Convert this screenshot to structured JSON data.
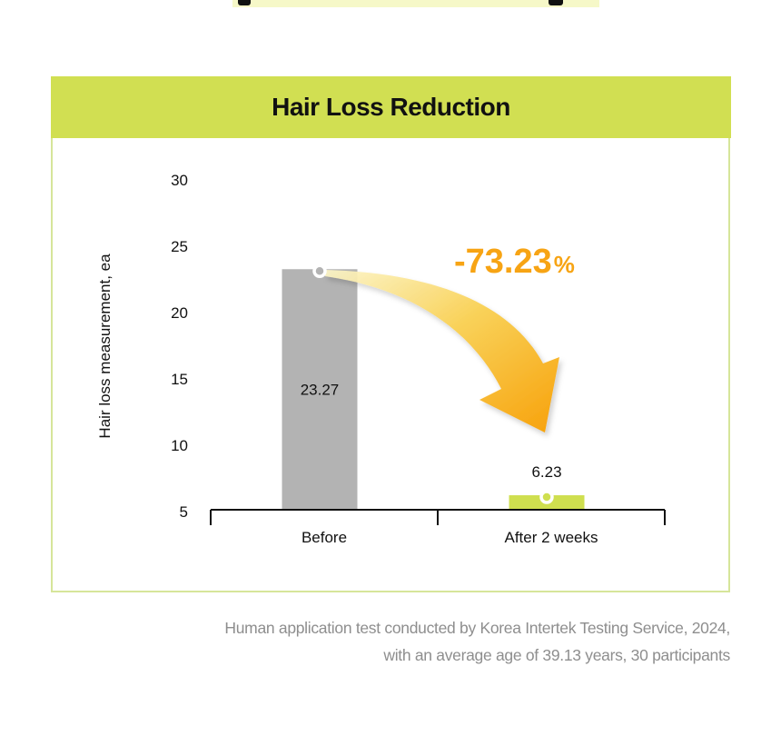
{
  "header": {
    "title": "Hair Loss Reduction"
  },
  "chart_data": {
    "type": "bar",
    "title": "Hair Loss Reduction",
    "ylabel": "Hair loss measurement, ea",
    "xlabel": "",
    "categories": [
      "Before",
      "After 2 weeks"
    ],
    "values": [
      23.27,
      6.23
    ],
    "value_labels": [
      "23.27",
      "6.23"
    ],
    "ylim": [
      5,
      30
    ],
    "yticks": [
      5,
      10,
      15,
      20,
      25,
      30
    ],
    "grid": false,
    "legend": "none",
    "bar_colors": [
      "#b3b3b3",
      "#cfdf4f"
    ],
    "annotation": {
      "value": "-73.23",
      "unit": "%",
      "color": "#f7a414"
    }
  },
  "footnote": {
    "line1": "Human application test conducted by Korea Intertek Testing Service, 2024,",
    "line2": "with an average age of 39.13 years, 30 participants"
  },
  "colors": {
    "accent": "#d1df52",
    "arrow": "#f7a414",
    "border": "#d6e59a"
  }
}
